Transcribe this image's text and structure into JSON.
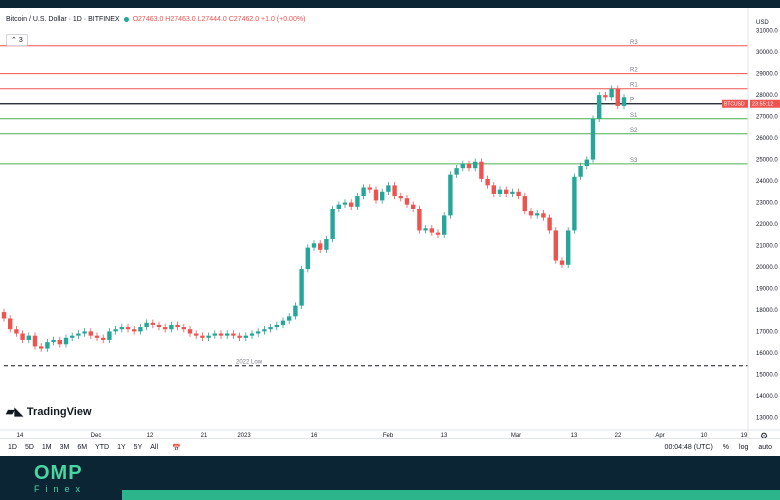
{
  "legend": {
    "title": "Bitcoin / U.S. Dollar · 1D · BITFINEX",
    "ohlc": "O27463.0 H27463.0 L27444.0 C27462.0 +1.0 (+0.00%)"
  },
  "collapse_label": "3",
  "currency": "USD",
  "y_ticks": [
    "31000.0",
    "30000.0",
    "29000.0",
    "28000.0",
    "27000.0",
    "26000.0",
    "25000.0",
    "24000.0",
    "23000.0",
    "22000.0",
    "21000.0",
    "20000.0",
    "19000.0",
    "18000.0",
    "17000.0",
    "16000.0",
    "15000.0",
    "14000.0",
    "13000.0"
  ],
  "x_ticks": [
    "14",
    "Dec",
    "12",
    "21",
    "2023",
    "16",
    "Feb",
    "13",
    "Mar",
    "13",
    "22",
    "Apr",
    "10",
    "19"
  ],
  "price_tag": {
    "symbol": "BTCUSD",
    "time": "23:55:12"
  },
  "pivots": {
    "r3": "R3",
    "r2": "R2",
    "r1": "R1",
    "p": "P",
    "s1": "S1",
    "s2": "S2",
    "s3": "S3",
    "low_label": "2022 Low"
  },
  "logo_text": "TradingView",
  "ranges": [
    "1D",
    "5D",
    "1M",
    "3M",
    "6M",
    "YTD",
    "1Y",
    "5Y",
    "All"
  ],
  "status": {
    "time": "00:04:48 (UTC)",
    "percent": "%",
    "log": "log",
    "auto": "auto"
  },
  "brand": {
    "name": "OMP",
    "sub": "Finex"
  },
  "colors": {
    "up": "#26a69a",
    "down": "#ef5350",
    "resistance": "#ef5350",
    "support": "#4caf50"
  },
  "chart_data": {
    "type": "candlestick",
    "title": "Bitcoin / U.S. Dollar · 1D · BITFINEX",
    "ylim": [
      12500,
      31500
    ],
    "closes": [
      17600,
      17100,
      16900,
      16600,
      16800,
      16300,
      16200,
      16500,
      16600,
      16400,
      16700,
      16800,
      16900,
      17000,
      16800,
      16700,
      16600,
      17000,
      17100,
      17200,
      17100,
      17000,
      17200,
      17400,
      17300,
      17200,
      17100,
      17300,
      17200,
      17100,
      16900,
      16800,
      16700,
      16800,
      16900,
      16800,
      16900,
      16800,
      16700,
      16800,
      16900,
      17000,
      17100,
      17200,
      17300,
      17500,
      17700,
      18200,
      19900,
      20900,
      21100,
      20800,
      21300,
      22700,
      22900,
      23000,
      22800,
      23300,
      23700,
      23600,
      23100,
      23500,
      23800,
      23300,
      23200,
      22900,
      22700,
      21700,
      21800,
      21600,
      21500,
      22400,
      24300,
      24600,
      24800,
      24600,
      24900,
      24100,
      23800,
      23400,
      23600,
      23400,
      23500,
      23300,
      22600,
      22400,
      22500,
      22300,
      21700,
      20300,
      20100,
      21700,
      24200,
      24700,
      25000,
      26900,
      28000,
      27900,
      28300,
      27500,
      27900
    ]
  }
}
